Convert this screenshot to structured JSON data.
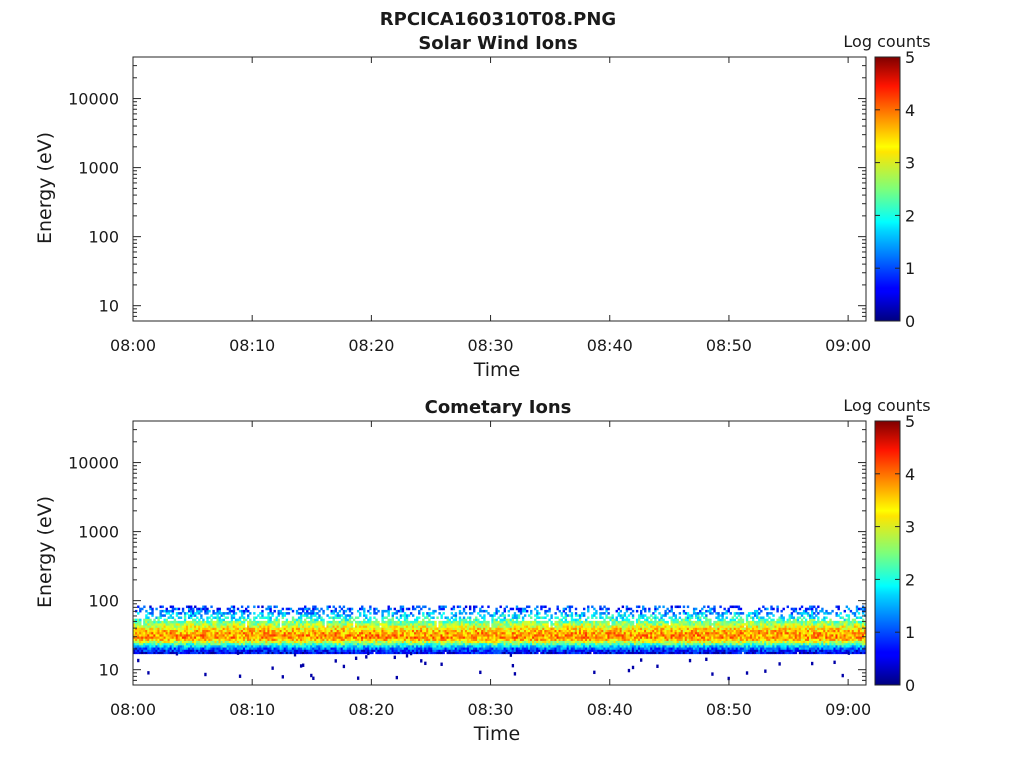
{
  "figure": {
    "title": "RPCICA160310T08.PNG"
  },
  "chart_data": [
    {
      "type": "heatmap",
      "title": "Solar Wind Ions",
      "xlabel": "Time",
      "ylabel": "Energy (eV)",
      "x_ticks": [
        "08:00",
        "08:10",
        "08:20",
        "08:30",
        "08:40",
        "08:50",
        "09:00"
      ],
      "x_range_minutes": [
        0,
        61.5
      ],
      "y_scale": "log",
      "y_ticks": [
        "10",
        "100",
        "1000",
        "10000"
      ],
      "y_range": [
        6,
        40000
      ],
      "colorbar": {
        "label": "Log counts",
        "ticks": [
          "0",
          "1",
          "2",
          "3",
          "4",
          "5"
        ],
        "range": [
          0,
          5
        ],
        "colormap": "jet"
      },
      "band": null
    },
    {
      "type": "heatmap",
      "title": "Cometary Ions",
      "xlabel": "Time",
      "ylabel": "Energy (eV)",
      "x_ticks": [
        "08:00",
        "08:10",
        "08:20",
        "08:30",
        "08:40",
        "08:50",
        "09:00"
      ],
      "x_range_minutes": [
        0,
        61.5
      ],
      "y_scale": "log",
      "y_ticks": [
        "10",
        "100",
        "1000",
        "10000"
      ],
      "y_range": [
        6,
        40000
      ],
      "colorbar": {
        "label": "Log counts",
        "ticks": [
          "0",
          "1",
          "2",
          "3",
          "4",
          "5"
        ],
        "range": [
          0,
          5
        ],
        "colormap": "jet"
      },
      "band": {
        "energy_min_eV": 17,
        "energy_max_eV": 85,
        "peak_energy_eV": 30,
        "peak_log_counts": 3.3,
        "sparse_min_eV": 7
      }
    }
  ]
}
